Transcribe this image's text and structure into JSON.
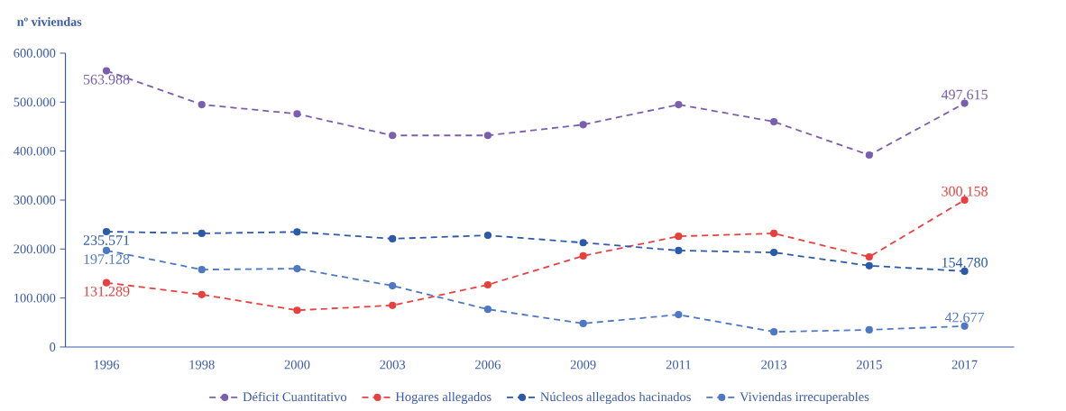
{
  "chart_data": {
    "type": "line",
    "ylabel": "nº viviendas",
    "categories": [
      "1996",
      "1998",
      "2000",
      "2003",
      "2006",
      "2009",
      "2011",
      "2013",
      "2015",
      "2017"
    ],
    "series": [
      {
        "name": "Déficit Cuantitativo",
        "color": "#7b5fae",
        "values": [
          563988,
          495000,
          476000,
          432000,
          432000,
          454000,
          495000,
          460000,
          392000,
          497615
        ],
        "value_labels": [
          "563.988",
          null,
          null,
          null,
          null,
          null,
          null,
          null,
          null,
          "497.615"
        ]
      },
      {
        "name": "Hogares allegados",
        "color": "#e8403f",
        "values": [
          131289,
          107000,
          75000,
          85000,
          127000,
          186000,
          226000,
          232000,
          184000,
          300158
        ],
        "value_labels": [
          "131.289",
          null,
          null,
          null,
          null,
          null,
          null,
          null,
          null,
          "300.158"
        ]
      },
      {
        "name": "Núcleos allegados hacinados",
        "color": "#2a5aa8",
        "values": [
          235571,
          232000,
          235000,
          221000,
          228000,
          213000,
          197000,
          193000,
          166000,
          154780
        ],
        "value_labels": [
          "235.571",
          null,
          null,
          null,
          null,
          null,
          null,
          null,
          null,
          "154.780"
        ]
      },
      {
        "name": "Viviendas irrecuperables",
        "color": "#4f78c4",
        "values": [
          197128,
          158000,
          160000,
          125000,
          77000,
          48000,
          66000,
          31000,
          35000,
          42677
        ],
        "value_labels": [
          "197.128",
          null,
          null,
          null,
          null,
          null,
          null,
          null,
          null,
          "42.677"
        ]
      }
    ],
    "ylim": [
      0,
      600000
    ],
    "yticks": [
      0,
      {
        "value": 100000,
        "label": "100.000"
      },
      {
        "value": 200000,
        "label": "200.000"
      },
      {
        "value": 300000,
        "label": "300.000"
      },
      {
        "value": 400000,
        "label": "400.000"
      },
      {
        "value": 500000,
        "label": "500.000"
      },
      {
        "value": 600000,
        "label": "600.000"
      }
    ],
    "legend": "bottom",
    "marker": "circle",
    "line_style": "dashed"
  }
}
